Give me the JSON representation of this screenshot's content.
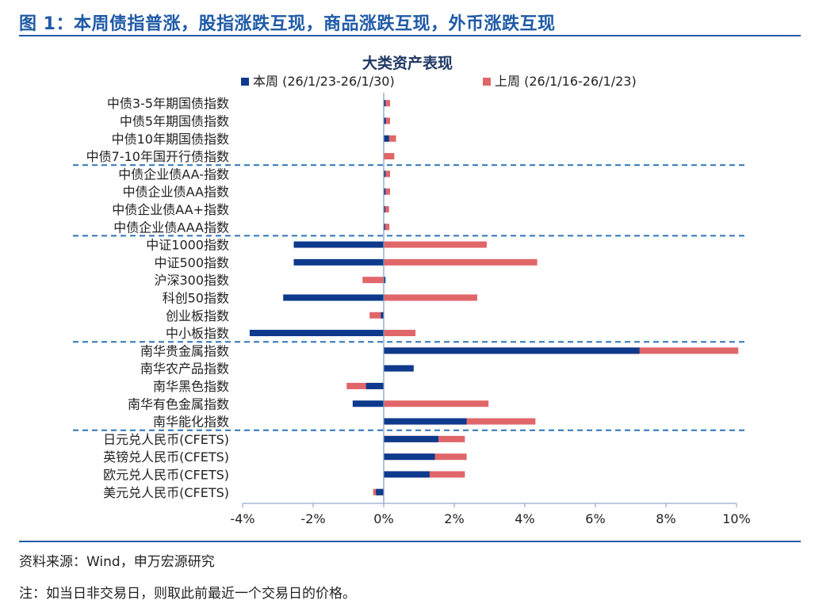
{
  "header": {
    "title": "图 1：本周债指普涨，股指涨跌互现，商品涨跌互现，外币涨跌互现"
  },
  "footer": {
    "source": "资料来源：Wind，申万宏源研究",
    "note": "注：如当日非交易日，则取此前最近一个交易日的价格。"
  },
  "colors": {
    "accent": "#1f5aa6",
    "this_week": "#0d3a8c",
    "last_week": "#e0666a",
    "divider": "#2e75b6"
  },
  "chart_data": {
    "type": "bar",
    "orientation": "horizontal",
    "title": "大类资产表现",
    "categories": [
      "中债3-5年期国债指数",
      "中债5年期国债指数",
      "中债10年期国债指数",
      "中债7-10年国开行债指数",
      "中债企业债AA-指数",
      "中债企业债AA指数",
      "中债企业债AA+指数",
      "中债企业债AAA指数",
      "中证1000指数",
      "中证500指数",
      "沪深300指数",
      "科创50指数",
      "创业板指数",
      "中小板指数",
      "南华贵金属指数",
      "南华农产品指数",
      "南华黑色指数",
      "南华有色金属指数",
      "南华能化指数",
      "日元兑人民币(CFETS)",
      "英镑兑人民币(CFETS)",
      "欧元兑人民币(CFETS)",
      "美元兑人民币(CFETS)"
    ],
    "series": [
      {
        "name": "本周 (26/1/23-26/1/30)",
        "values": [
          0.05,
          0.06,
          0.15,
          0.0,
          0.05,
          0.05,
          0.04,
          0.04,
          -2.55,
          -2.55,
          0.05,
          -2.85,
          -0.08,
          -3.8,
          7.25,
          0.85,
          -0.5,
          -0.88,
          2.35,
          1.55,
          1.45,
          1.3,
          -0.22
        ]
      },
      {
        "name": "上周 (26/1/16-26/1/23)",
        "values": [
          0.18,
          0.18,
          0.35,
          0.3,
          0.18,
          0.18,
          0.15,
          0.16,
          2.92,
          4.35,
          -0.6,
          2.65,
          -0.4,
          0.9,
          10.05,
          0.0,
          -1.05,
          2.97,
          4.3,
          2.3,
          2.35,
          2.3,
          -0.3
        ]
      }
    ],
    "group_breaks_after": [
      3,
      7,
      13,
      18
    ],
    "xlabel": "",
    "ylabel": "",
    "xlim": [
      -4,
      10
    ],
    "xticks": [
      "-4%",
      "-2%",
      "0%",
      "2%",
      "4%",
      "6%",
      "8%",
      "10%"
    ],
    "legend_position": "top"
  }
}
